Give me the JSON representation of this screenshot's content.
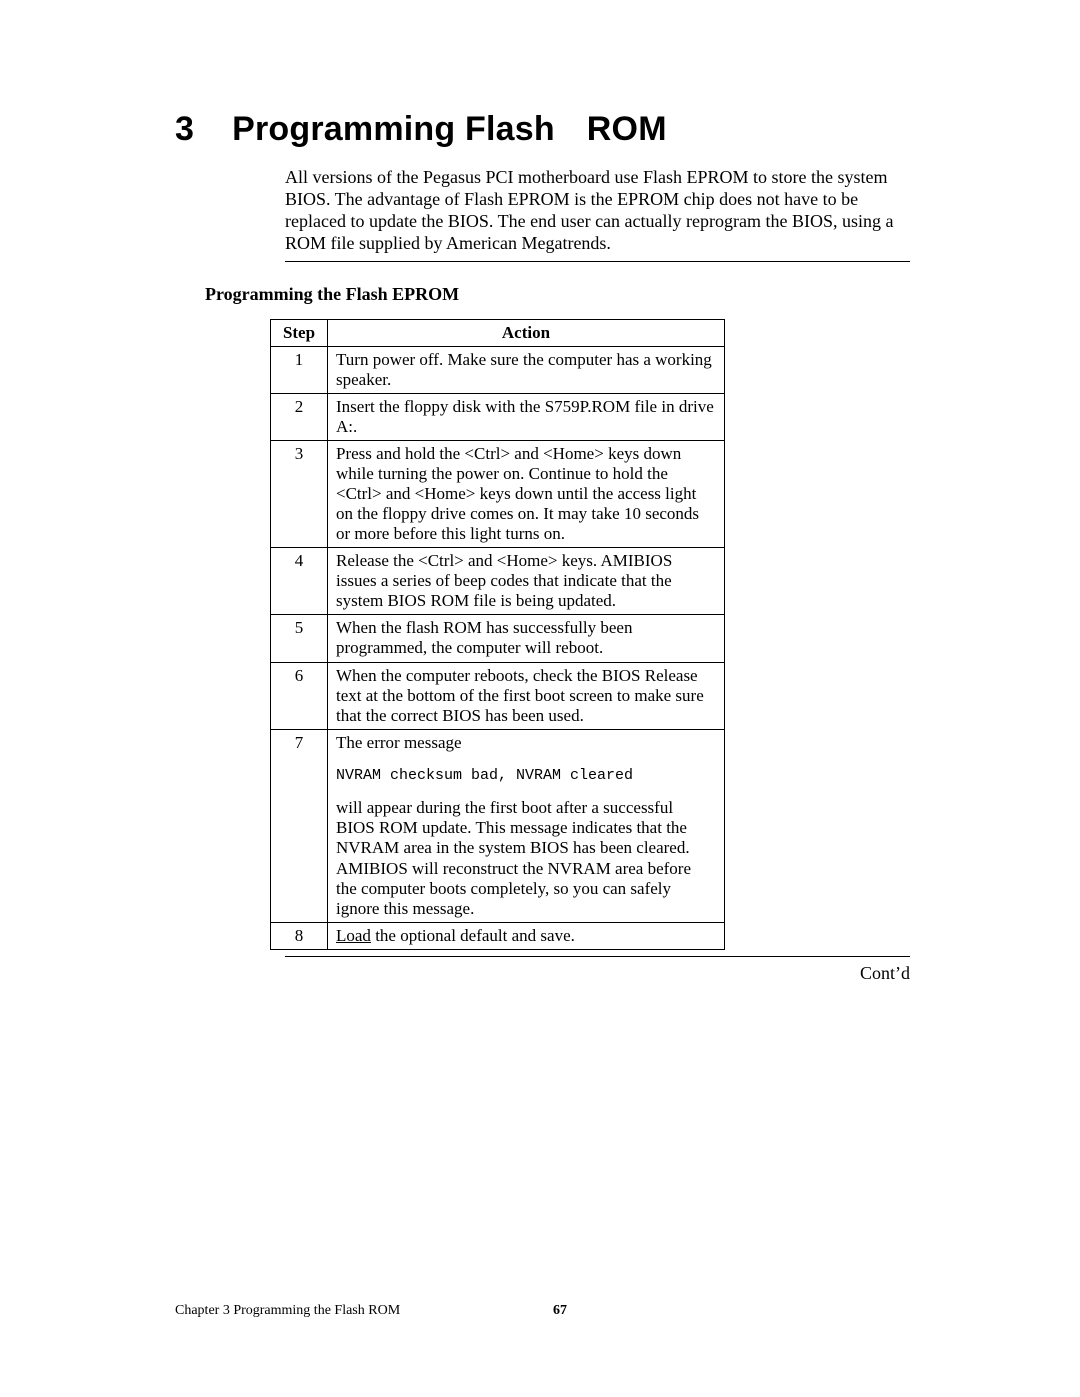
{
  "chapter": {
    "number": "3",
    "title_a": "Programming Flash",
    "title_b": "ROM"
  },
  "intro": "All versions of the Pegasus PCI motherboard use Flash EPROM to store the system BIOS. The advantage of Flash EPROM is the EPROM chip does not have to be replaced to update the BIOS. The end user can actually reprogram the BIOS, using a ROM file supplied by American Megatrends.",
  "section_heading": "Programming the Flash EPROM",
  "table": {
    "headers": {
      "step": "Step",
      "action": "Action"
    },
    "rows": [
      {
        "n": "1",
        "text": "Turn power off. Make sure the computer has a working speaker."
      },
      {
        "n": "2",
        "text": "Insert the floppy disk with the S759P.ROM file in drive A:."
      },
      {
        "n": "3",
        "text": "Press and hold the <Ctrl> and <Home> keys down while turning the power on. Continue to hold the <Ctrl> and <Home> keys down until the access light on the floppy drive comes on. It may take 10 seconds or more before this light turns on."
      },
      {
        "n": "4",
        "text": "Release the <Ctrl> and <Home> keys. AMIBIOS issues a series of beep codes that indicate that the system BIOS ROM file is being updated."
      },
      {
        "n": "5",
        "text": "When the flash ROM has successfully been programmed, the computer will reboot."
      },
      {
        "n": "6",
        "text": "When the computer reboots, check the BIOS Release text at the bottom of the first boot screen to make sure that the correct BIOS has been used."
      },
      {
        "n": "7",
        "lead": "The error message",
        "code": "NVRAM checksum bad, NVRAM cleared",
        "tail": "will appear during the first boot after a successful BIOS ROM update. This message indicates that the NVRAM area in the system BIOS has been cleared. AMIBIOS will reconstruct the NVRAM area before the computer boots completely, so you can safely ignore this message."
      },
      {
        "n": "8",
        "underline_word": "Load",
        "rest": " the optional default and save."
      }
    ]
  },
  "contd": "Cont’d",
  "footer": {
    "chapter_line": "Chapter 3 Programming the Flash ROM",
    "page_number": "67"
  },
  "colors": {
    "text": "#000000",
    "background": "#ffffff",
    "border": "#000000"
  }
}
